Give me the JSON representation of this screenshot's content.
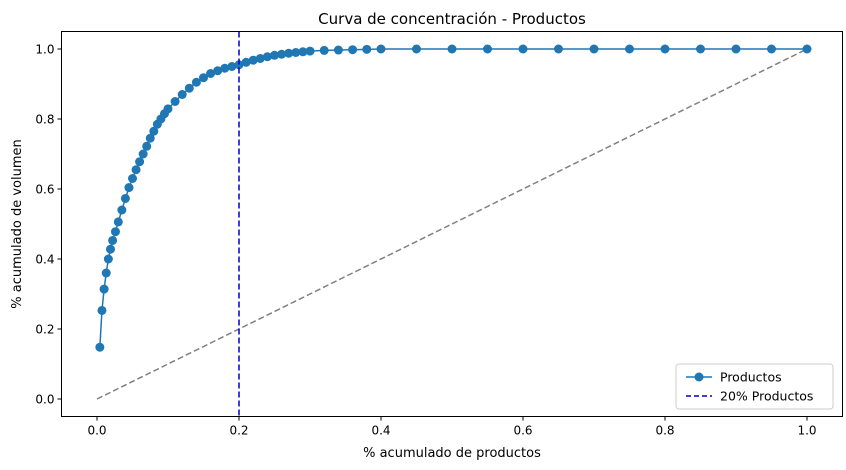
{
  "chart_data": {
    "type": "line",
    "title": "Curva de concentración - Productos",
    "xlabel": "% acumulado de productos",
    "ylabel": "% acumulado de volumen",
    "xlim": [
      -0.05,
      1.05
    ],
    "ylim": [
      -0.05,
      1.05
    ],
    "xticks": [
      "0.0",
      "0.2",
      "0.4",
      "0.6",
      "0.8",
      "1.0"
    ],
    "yticks": [
      "0.0",
      "0.2",
      "0.4",
      "0.6",
      "0.8",
      "1.0"
    ],
    "grid": false,
    "legend_position": "lower-right",
    "series": [
      {
        "name": "Productos",
        "style": "line-with-circle-markers",
        "color": "#1f77b4",
        "x": [
          0.004,
          0.007,
          0.01,
          0.013,
          0.016,
          0.019,
          0.022,
          0.026,
          0.03,
          0.035,
          0.04,
          0.045,
          0.05,
          0.055,
          0.06,
          0.065,
          0.07,
          0.075,
          0.08,
          0.085,
          0.09,
          0.095,
          0.1,
          0.11,
          0.12,
          0.13,
          0.14,
          0.15,
          0.16,
          0.17,
          0.18,
          0.19,
          0.2,
          0.21,
          0.22,
          0.23,
          0.24,
          0.25,
          0.26,
          0.27,
          0.28,
          0.29,
          0.3,
          0.32,
          0.34,
          0.36,
          0.38,
          0.4,
          0.45,
          0.5,
          0.55,
          0.6,
          0.65,
          0.7,
          0.75,
          0.8,
          0.85,
          0.9,
          0.95,
          1.0
        ],
        "y": [
          0.148,
          0.253,
          0.314,
          0.36,
          0.4,
          0.428,
          0.453,
          0.478,
          0.506,
          0.54,
          0.573,
          0.604,
          0.63,
          0.655,
          0.678,
          0.7,
          0.722,
          0.745,
          0.765,
          0.785,
          0.8,
          0.815,
          0.829,
          0.85,
          0.87,
          0.888,
          0.905,
          0.918,
          0.93,
          0.938,
          0.945,
          0.95,
          0.955,
          0.962,
          0.968,
          0.973,
          0.978,
          0.982,
          0.985,
          0.988,
          0.99,
          0.992,
          0.994,
          0.996,
          0.997,
          0.998,
          0.999,
          1.0,
          1.0,
          1.0,
          1.0,
          1.0,
          1.0,
          1.0,
          1.0,
          1.0,
          1.0,
          1.0,
          1.0,
          1.0
        ]
      },
      {
        "name": "",
        "style": "dashed-line",
        "color": "#808080",
        "x": [
          0.0,
          1.0
        ],
        "y": [
          0.0,
          1.0
        ]
      },
      {
        "name": "20% Productos",
        "style": "dashed-vertical-line",
        "color": "#0000cc",
        "x_value": 0.2
      }
    ]
  }
}
